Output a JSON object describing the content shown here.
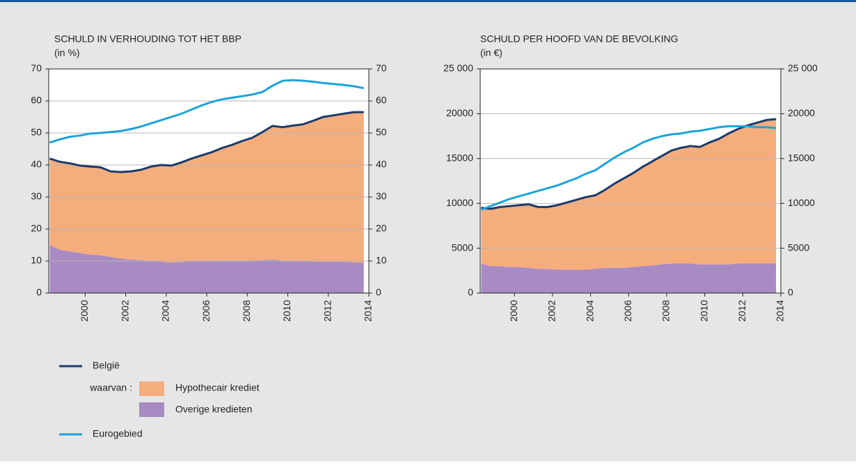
{
  "legend_prefix": "waarvan :",
  "chart_data": [
    {
      "type": "area",
      "title": "SCHULD IN VERHOUDING TOT HET BBP",
      "subtitle": "(in %)",
      "x": [
        1998.25,
        1998.75,
        1999.25,
        1999.75,
        2000.25,
        2000.75,
        2001.25,
        2001.75,
        2002.25,
        2002.75,
        2003.25,
        2003.75,
        2004.25,
        2004.75,
        2005.25,
        2005.75,
        2006.25,
        2006.75,
        2007.25,
        2007.75,
        2008.25,
        2008.75,
        2009.25,
        2009.75,
        2010.25,
        2010.75,
        2011.25,
        2011.75,
        2012.25,
        2012.75,
        2013.25,
        2013.75
      ],
      "xlim": [
        1998.2,
        2014
      ],
      "xticks": [
        2000,
        2002,
        2004,
        2006,
        2008,
        2010,
        2012,
        2014
      ],
      "ylim": [
        0,
        70
      ],
      "yticks": [
        0,
        10,
        20,
        30,
        40,
        50,
        60,
        70
      ],
      "grid": true,
      "series": [
        {
          "name": "Overige kredieten",
          "kind": "area",
          "color": "#a98bc4",
          "values": [
            15,
            13.5,
            13,
            12.5,
            12,
            11.8,
            11.3,
            10.8,
            10.5,
            10.3,
            10,
            9.8,
            9.5,
            9.7,
            10,
            10,
            10,
            10.2,
            10.2,
            10.2,
            10.2,
            10.3,
            10.5,
            10.2,
            10,
            10,
            9.8,
            9.8,
            9.8,
            9.8,
            9.6,
            9.5
          ]
        },
        {
          "name": "Hypothecair krediet",
          "kind": "area",
          "color": "#f5ad7c",
          "values": [
            27,
            27.5,
            27.5,
            27.3,
            27.5,
            27.5,
            26.7,
            27,
            27.5,
            28.2,
            29.5,
            30.2,
            30.3,
            31.1,
            32,
            33,
            34,
            35.1,
            36.1,
            37.3,
            38.3,
            40,
            41.7,
            41.6,
            42.3,
            42.7,
            44,
            45.2,
            45.7,
            46.2,
            46.9,
            47
          ]
        },
        {
          "name": "België",
          "kind": "line",
          "color": "#1a3a6b",
          "values": [
            42,
            41,
            40.5,
            39.8,
            39.5,
            39.3,
            38,
            37.8,
            38,
            38.5,
            39.5,
            40,
            39.8,
            40.8,
            42,
            43,
            44,
            45.3,
            46.3,
            47.5,
            48.5,
            50.3,
            52.2,
            51.8,
            52.3,
            52.7,
            53.8,
            55,
            55.5,
            56,
            56.5,
            56.5
          ]
        },
        {
          "name": "Eurogebied",
          "kind": "line",
          "color": "#1ba3dc",
          "values": [
            47,
            48,
            48.8,
            49.2,
            49.8,
            50,
            50.3,
            50.6,
            51.2,
            52,
            53,
            54,
            55,
            56,
            57.3,
            58.6,
            59.7,
            60.5,
            61,
            61.5,
            62,
            62.8,
            64.8,
            66.3,
            66.5,
            66.3,
            66,
            65.6,
            65.3,
            65,
            64.6,
            64
          ]
        }
      ]
    },
    {
      "type": "area",
      "title": "SCHULD PER HOOFD VAN DE BEVOLKING",
      "subtitle": "(in €)",
      "x": [
        1998.25,
        1998.75,
        1999.25,
        1999.75,
        2000.25,
        2000.75,
        2001.25,
        2001.75,
        2002.25,
        2002.75,
        2003.25,
        2003.75,
        2004.25,
        2004.75,
        2005.25,
        2005.75,
        2006.25,
        2006.75,
        2007.25,
        2007.75,
        2008.25,
        2008.75,
        2009.25,
        2009.75,
        2010.25,
        2010.75,
        2011.25,
        2011.75,
        2012.25,
        2012.75,
        2013.25,
        2013.75
      ],
      "xlim": [
        1998.2,
        2014
      ],
      "xticks": [
        2000,
        2002,
        2004,
        2006,
        2008,
        2010,
        2012,
        2014
      ],
      "ylim": [
        0,
        25000
      ],
      "yticks": [
        0,
        5000,
        10000,
        15000,
        20000,
        {
          "value": 25000,
          "label": "25 000"
        }
      ],
      "grid": true,
      "series": [
        {
          "name": "Overige kredieten",
          "kind": "area",
          "color": "#a98bc4",
          "values": [
            3300,
            3000,
            3000,
            2900,
            2900,
            2800,
            2700,
            2700,
            2600,
            2600,
            2600,
            2600,
            2700,
            2800,
            2800,
            2800,
            2900,
            3000,
            3100,
            3200,
            3300,
            3300,
            3300,
            3200,
            3200,
            3200,
            3200,
            3300,
            3300,
            3300,
            3300,
            3300
          ]
        },
        {
          "name": "Hypothecair krediet",
          "kind": "area",
          "color": "#f5ad7c",
          "values": [
            6200,
            6400,
            6600,
            6800,
            6900,
            7100,
            6900,
            6900,
            7200,
            7500,
            7800,
            8100,
            8200,
            8700,
            9400,
            10000,
            10500,
            11100,
            11600,
            12100,
            12600,
            12900,
            13100,
            13100,
            13600,
            14000,
            14600,
            15000,
            15400,
            15700,
            16000,
            16100
          ]
        },
        {
          "name": "België",
          "kind": "line",
          "color": "#1a3a6b",
          "values": [
            9500,
            9400,
            9600,
            9700,
            9800,
            9900,
            9600,
            9600,
            9800,
            10100,
            10400,
            10700,
            10900,
            11500,
            12200,
            12800,
            13400,
            14100,
            14700,
            15300,
            15900,
            16200,
            16400,
            16300,
            16800,
            17200,
            17800,
            18300,
            18700,
            19000,
            19300,
            19400
          ]
        },
        {
          "name": "Eurogebied",
          "kind": "line",
          "color": "#1ba3dc",
          "values": [
            9300,
            9700,
            10100,
            10500,
            10800,
            11100,
            11400,
            11700,
            12000,
            12400,
            12800,
            13300,
            13700,
            14400,
            15100,
            15700,
            16200,
            16800,
            17200,
            17500,
            17700,
            17800,
            18000,
            18100,
            18300,
            18500,
            18600,
            18600,
            18600,
            18500,
            18500,
            18400
          ]
        }
      ]
    }
  ]
}
